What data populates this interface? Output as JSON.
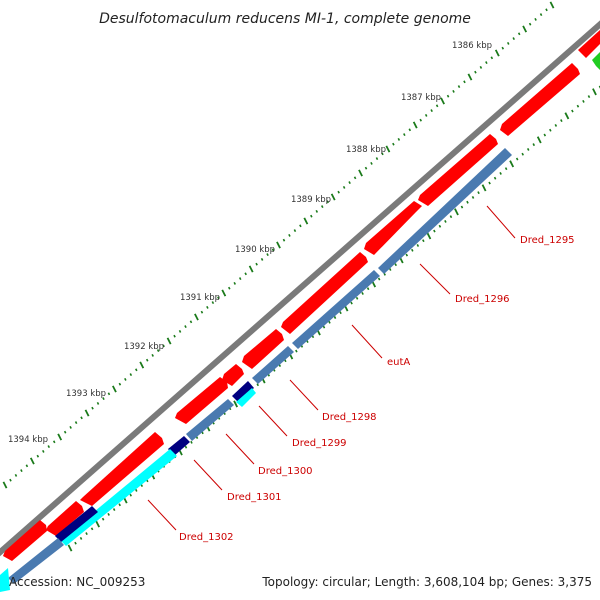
{
  "title": "Desulfotomaculum reducens MI-1, complete genome",
  "footer": {
    "accession": "Accession: NC_009253",
    "summary": "Topology: circular; Length: 3,608,104 bp; Genes: 3,375"
  },
  "kbp_labels": [
    "1386 kbp",
    "1387 kbp",
    "1388 kbp",
    "1389 kbp",
    "1390 kbp",
    "1391 kbp",
    "1392 kbp",
    "1393 kbp",
    "1394 kbp"
  ],
  "gene_labels": [
    "Dred_1295",
    "Dred_1296",
    "eutA",
    "Dred_1298",
    "Dred_1299",
    "Dred_1300",
    "Dred_1301",
    "Dred_1302"
  ],
  "colors": {
    "backbone": "#808080",
    "forward_cds": "#ff0000",
    "reverse_cds": "#4a7ab0",
    "cyan_feature": "#00ffff",
    "navy_feature": "#000080",
    "green_feature": "#22cc22",
    "tick_green": "#1a7a1a",
    "label_red": "#cc0000"
  }
}
